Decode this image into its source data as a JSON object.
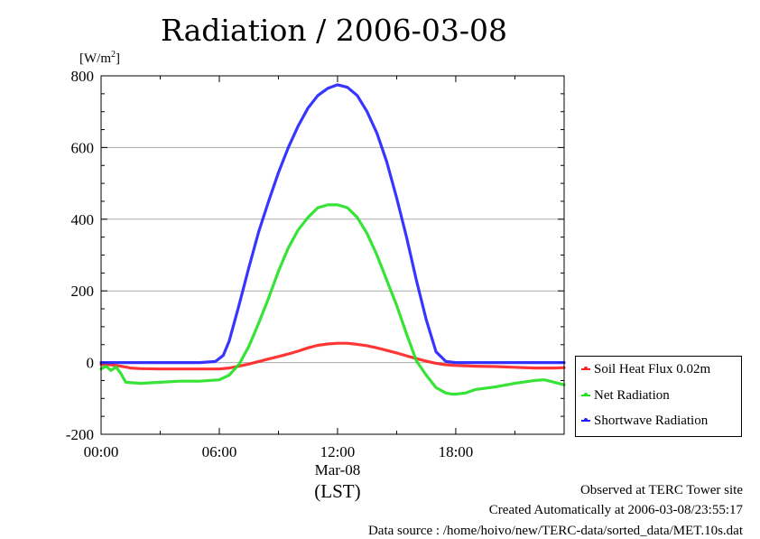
{
  "chart_data": {
    "type": "line",
    "title": "Radiation / 2006-03-08",
    "ylabel_text": "[W/m",
    "ylabel_sup": "2",
    "ylabel_close": "]",
    "xlabel": "(LST)",
    "date_label": "Mar-08",
    "ylim": [
      -200,
      800
    ],
    "xlim": [
      0,
      23.5
    ],
    "yticks": [
      -200,
      0,
      200,
      400,
      600,
      800
    ],
    "ytick_labels": [
      "-200",
      "0",
      "200",
      "400",
      "600",
      "800"
    ],
    "xticks": [
      0,
      6,
      12,
      18
    ],
    "xtick_labels": [
      "00:00",
      "06:00",
      "12:00",
      "18:00"
    ],
    "grid": "horizontal",
    "legend_position": "right",
    "series": [
      {
        "name": "Soil Heat Flux 0.02m",
        "color": "#ff2020",
        "x": [
          0,
          0.5,
          1,
          1.5,
          2,
          3,
          4,
          5,
          6,
          6.5,
          7,
          7.5,
          8,
          8.5,
          9,
          9.5,
          10,
          10.5,
          11,
          11.5,
          12,
          12.5,
          13,
          13.5,
          14,
          14.5,
          15,
          15.5,
          16,
          16.5,
          17,
          17.5,
          18,
          19,
          20,
          21,
          22,
          23,
          23.5
        ],
        "y": [
          -5,
          -6,
          -10,
          -15,
          -17,
          -18,
          -18,
          -18,
          -18,
          -15,
          -10,
          -4,
          3,
          10,
          17,
          24,
          32,
          41,
          48,
          52,
          54,
          54,
          51,
          47,
          41,
          34,
          27,
          19,
          11,
          4,
          -2,
          -6,
          -8,
          -10,
          -11,
          -13,
          -15,
          -15,
          -14
        ]
      },
      {
        "name": "Net Radiation",
        "color": "#20e020",
        "x": [
          0,
          0.25,
          0.5,
          0.75,
          1,
          1.25,
          2,
          3,
          4,
          5,
          6,
          6.5,
          7,
          7.5,
          8,
          8.5,
          9,
          9.5,
          10,
          10.5,
          11,
          11.5,
          12,
          12.5,
          13,
          13.5,
          14,
          14.5,
          15,
          15.5,
          16,
          16.5,
          17,
          17.5,
          17.8,
          18,
          18.5,
          19,
          20,
          21,
          22,
          22.5,
          23,
          23.5
        ],
        "y": [
          -18,
          -10,
          -22,
          -12,
          -30,
          -55,
          -58,
          -55,
          -52,
          -52,
          -48,
          -35,
          -5,
          45,
          110,
          180,
          255,
          320,
          370,
          405,
          432,
          440,
          440,
          432,
          405,
          360,
          300,
          230,
          160,
          80,
          5,
          -35,
          -70,
          -85,
          -88,
          -88,
          -85,
          -75,
          -68,
          -58,
          -50,
          -48,
          -55,
          -62
        ]
      },
      {
        "name": "Shortwave Radiation",
        "color": "#2020ff",
        "x": [
          0,
          1,
          2,
          3,
          4,
          5,
          5.8,
          6.2,
          6.5,
          7,
          7.5,
          8,
          8.5,
          9,
          9.5,
          10,
          10.5,
          11,
          11.5,
          12,
          12.5,
          13,
          13.5,
          14,
          14.5,
          15,
          15.5,
          16,
          16.5,
          17,
          17.5,
          18,
          19,
          20,
          21,
          22,
          23,
          23.5
        ],
        "y": [
          0,
          0,
          0,
          0,
          0,
          0,
          3,
          20,
          60,
          160,
          265,
          365,
          450,
          530,
          600,
          660,
          710,
          745,
          765,
          775,
          768,
          745,
          700,
          640,
          560,
          460,
          350,
          230,
          120,
          30,
          3,
          0,
          0,
          0,
          0,
          0,
          0,
          0
        ]
      }
    ]
  },
  "footer": {
    "line1": "Observed at TERC Tower site",
    "line2": "Created Automatically at 2006-03-08/23:55:17",
    "line3": "Data source : /home/hoivo/new/TERC-data/sorted_data/MET.10s.dat"
  }
}
